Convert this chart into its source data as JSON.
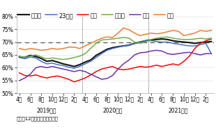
{
  "note": "（注）12か月後方移動平均値",
  "dashed_line_y": 70,
  "ylim": [
    50,
    80
  ],
  "yticks": [
    50,
    55,
    60,
    65,
    70,
    75,
    80
  ],
  "year_labels": [
    "2019年度",
    "2020年度",
    "2021年度"
  ],
  "x_month_labels": [
    "4月",
    "6月",
    "8月",
    "10月",
    "12月",
    "2月"
  ],
  "n_per_year": 12,
  "series_order": [
    "東京圏",
    "23区内",
    "都下",
    "神奈川",
    "埼玉",
    "千葉"
  ],
  "series": {
    "東京圏": {
      "color": "#1a1a1a",
      "linewidth": 1.6,
      "values": [
        64.2,
        64.0,
        64.8,
        64.4,
        63.6,
        62.5,
        62.8,
        62.2,
        61.5,
        61.0,
        60.5,
        61.2,
        62.2,
        63.0,
        64.8,
        66.0,
        67.2,
        67.8,
        68.2,
        68.5,
        68.8,
        69.5,
        70.0,
        70.5,
        70.8,
        71.0,
        71.2,
        71.0,
        70.5,
        70.2,
        70.0,
        69.8,
        69.5,
        69.8,
        70.0,
        70.2
      ]
    },
    "23区内": {
      "color": "#4472C4",
      "linewidth": 1.1,
      "values": [
        64.0,
        63.5,
        64.2,
        63.8,
        62.5,
        61.5,
        61.8,
        61.2,
        60.8,
        60.2,
        59.8,
        60.5,
        61.5,
        62.5,
        64.0,
        65.5,
        66.8,
        67.5,
        68.0,
        68.5,
        68.8,
        69.5,
        70.0,
        70.5,
        70.5,
        70.2,
        70.0,
        70.0,
        69.5,
        69.2,
        68.8,
        68.5,
        68.5,
        69.0,
        69.5,
        65.5
      ]
    },
    "都下": {
      "color": "#FF0000",
      "linewidth": 1.1,
      "values": [
        58.0,
        57.0,
        56.8,
        57.2,
        56.5,
        56.0,
        56.5,
        56.8,
        56.2,
        55.5,
        54.5,
        55.2,
        56.0,
        57.2,
        58.5,
        59.5,
        60.0,
        60.5,
        59.5,
        59.2,
        59.5,
        60.0,
        60.5,
        60.2,
        60.5,
        61.0,
        60.5,
        61.0,
        61.5,
        61.0,
        62.5,
        64.5,
        67.5,
        69.5,
        70.5,
        71.2
      ]
    },
    "神奈川": {
      "color": "#70AD47",
      "linewidth": 1.1,
      "values": [
        64.5,
        64.0,
        64.5,
        65.0,
        64.2,
        63.5,
        63.8,
        63.5,
        63.2,
        63.5,
        64.0,
        64.5,
        65.5,
        67.5,
        69.5,
        70.8,
        71.0,
        71.2,
        71.5,
        71.8,
        71.5,
        70.0,
        69.5,
        70.0,
        71.0,
        71.5,
        71.8,
        72.0,
        71.5,
        71.2,
        71.0,
        71.0,
        71.2,
        71.5,
        71.2,
        71.5
      ]
    },
    "埼玉": {
      "color": "#7030A0",
      "linewidth": 1.1,
      "values": [
        55.0,
        56.0,
        57.5,
        60.0,
        60.5,
        60.0,
        60.5,
        60.0,
        59.5,
        59.0,
        58.5,
        59.0,
        58.5,
        57.5,
        56.5,
        55.5,
        55.8,
        57.0,
        59.5,
        61.5,
        63.0,
        65.0,
        65.8,
        66.0,
        66.5,
        66.8,
        66.5,
        65.5,
        65.2,
        65.5,
        65.8,
        66.0,
        65.5,
        65.0,
        65.5,
        65.5
      ]
    },
    "千葉": {
      "color": "#ED7D31",
      "linewidth": 1.1,
      "values": [
        67.5,
        67.0,
        67.5,
        67.2,
        66.8,
        67.0,
        67.5,
        67.2,
        67.5,
        68.0,
        68.0,
        67.5,
        68.5,
        69.5,
        70.5,
        71.5,
        72.0,
        71.8,
        73.5,
        75.5,
        74.8,
        73.5,
        72.5,
        73.0,
        73.5,
        73.2,
        73.5,
        74.0,
        74.5,
        74.2,
        72.5,
        73.0,
        73.5,
        74.5,
        74.2,
        74.5
      ]
    }
  },
  "background_color": "#ffffff",
  "legend_fontsize": 6.0,
  "tick_fontsize": 5.5,
  "note_fontsize": 5.0,
  "border_color": "#aaaaaa"
}
